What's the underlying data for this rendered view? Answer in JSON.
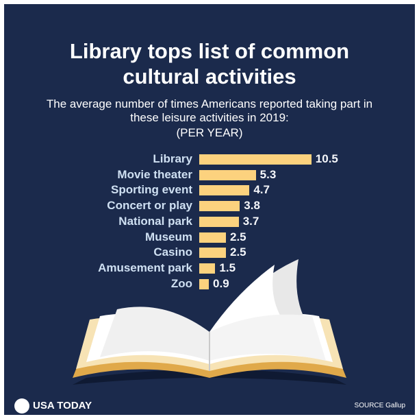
{
  "chart_data": {
    "type": "bar",
    "orientation": "horizontal",
    "title": "Library tops list of common cultural activities",
    "subtitle": "The average number of times Americans reported taking part in these leisure activities in 2019:",
    "unit_note": "(PER YEAR)",
    "categories": [
      "Library",
      "Movie theater",
      "Sporting event",
      "Concert or play",
      "National park",
      "Museum",
      "Casino",
      "Amusement park",
      "Zoo"
    ],
    "values": [
      10.5,
      5.3,
      4.7,
      3.8,
      3.7,
      2.5,
      2.5,
      1.5,
      0.9
    ],
    "color": "#fcd27e",
    "brand": "USA TODAY",
    "source": "SOURCE Gallup"
  }
}
